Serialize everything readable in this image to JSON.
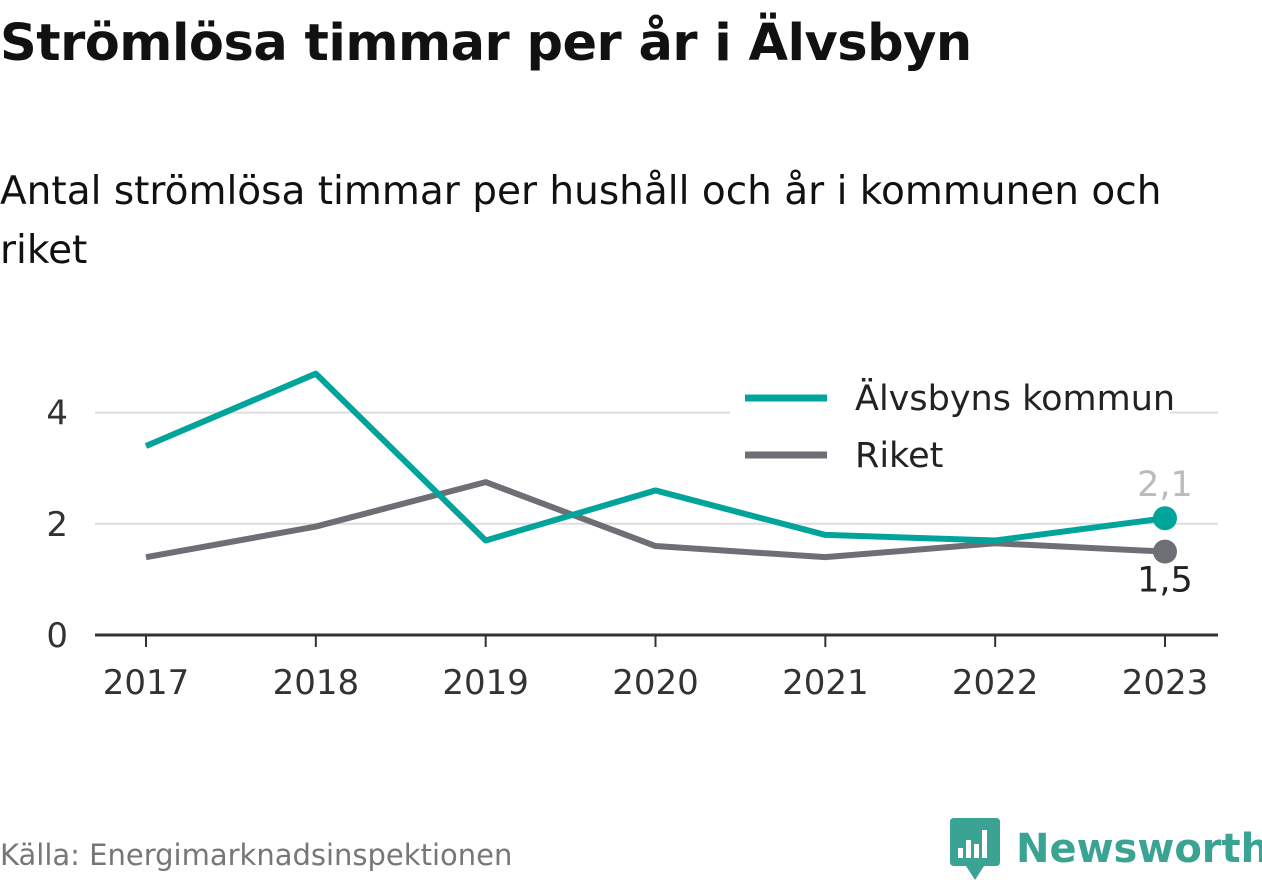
{
  "header": {
    "title": "Strömlösa timmar per år i Älvsbyn",
    "subtitle": "Antal strömlösa timmar per hushåll och år i kommunen och riket"
  },
  "footer": {
    "source": "Källa: Energimarknadsinspektionen",
    "brand": "Newsworthy",
    "brand_icon": "newsworthy-logo-icon",
    "brand_color": "#3aa394"
  },
  "chart_data": {
    "type": "line",
    "x": [
      "2017",
      "2018",
      "2019",
      "2020",
      "2021",
      "2022",
      "2023"
    ],
    "series": [
      {
        "name": "Älvsbyns kommun",
        "color": "#00a49a",
        "values": [
          3.4,
          4.7,
          1.7,
          2.6,
          1.8,
          1.7,
          2.1
        ],
        "end_label": "2,1"
      },
      {
        "name": "Riket",
        "color": "#6e6e75",
        "values": [
          1.4,
          1.95,
          2.75,
          1.6,
          1.4,
          1.65,
          1.5
        ],
        "end_label": "1,5"
      }
    ],
    "ylim": [
      0,
      5
    ],
    "yticks": [
      "0",
      "2",
      "4"
    ],
    "ytick_values": [
      0,
      2,
      4
    ],
    "grid": true,
    "legend_position": "top-right",
    "xlabel": "",
    "ylabel": ""
  }
}
